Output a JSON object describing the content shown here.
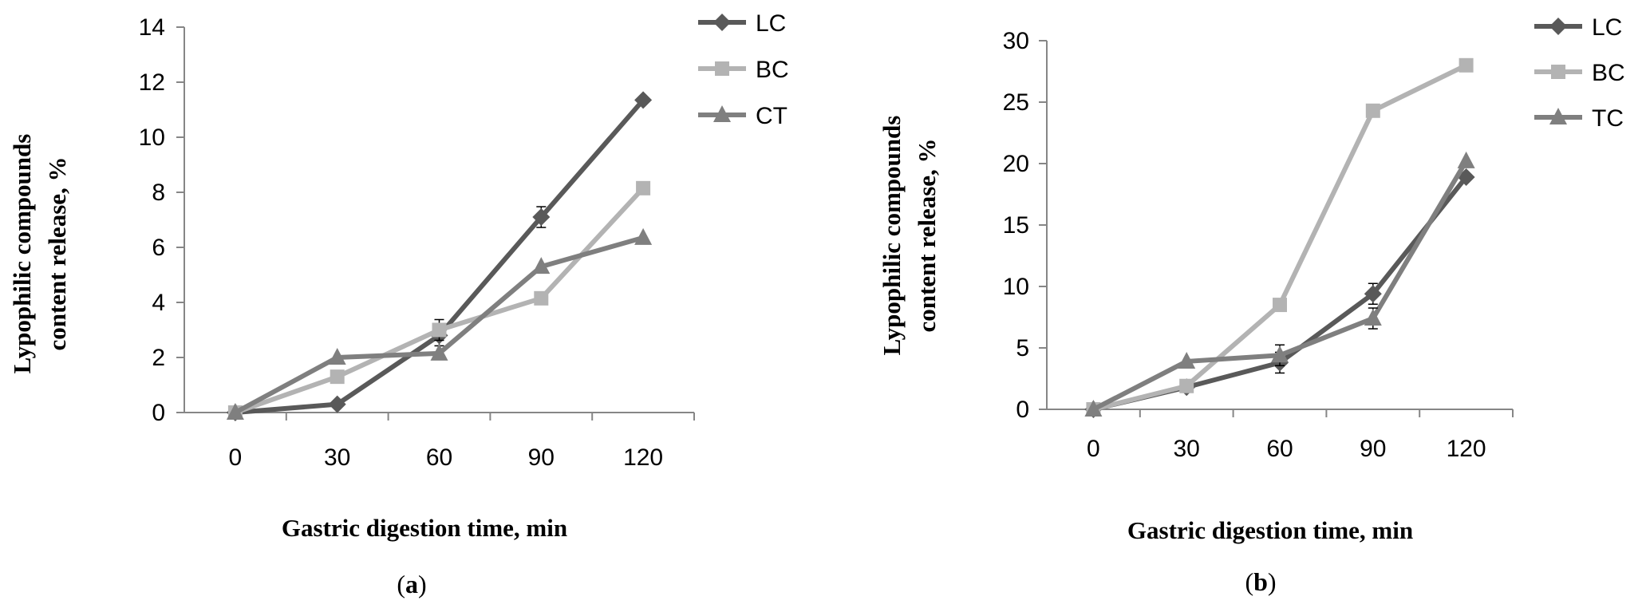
{
  "chart_data": [
    {
      "type": "line",
      "panel_label": "a",
      "x": [
        0,
        30,
        60,
        90,
        120
      ],
      "categories": [
        "0",
        "30",
        "60",
        "90",
        "120"
      ],
      "xlabel": "Gastric digestion time, min",
      "ylabel_line1": "Lypophilic compounds",
      "ylabel_line2": "content release, %",
      "ylim": [
        0,
        14
      ],
      "yticks": [
        0,
        2,
        4,
        6,
        8,
        10,
        12,
        14
      ],
      "legend_position": "top-right",
      "series": [
        {
          "name": "LC",
          "marker": "diamond",
          "color": "#595959",
          "values": [
            0.0,
            0.3,
            2.8,
            7.1,
            11.35
          ]
        },
        {
          "name": "BC",
          "marker": "square",
          "color": "#b3b3b3",
          "values": [
            0.0,
            1.3,
            3.0,
            4.15,
            8.15
          ]
        },
        {
          "name": "CT",
          "marker": "triangle",
          "color": "#7f7f7f",
          "values": [
            0.0,
            2.0,
            2.15,
            5.3,
            6.35
          ]
        }
      ]
    },
    {
      "type": "line",
      "panel_label": "b",
      "x": [
        0,
        30,
        60,
        90,
        120
      ],
      "categories": [
        "0",
        "30",
        "60",
        "90",
        "120"
      ],
      "xlabel": "Gastric digestion time, min",
      "ylabel_line1": "Lypophilic compounds",
      "ylabel_line2": "content release, %",
      "ylim": [
        0,
        30
      ],
      "yticks": [
        0,
        5,
        10,
        15,
        20,
        25,
        30
      ],
      "legend_position": "top-right",
      "series": [
        {
          "name": "LC",
          "marker": "diamond",
          "color": "#595959",
          "values": [
            0.0,
            1.8,
            3.8,
            9.4,
            18.9
          ]
        },
        {
          "name": "BC",
          "marker": "square",
          "color": "#b3b3b3",
          "values": [
            0.0,
            1.9,
            8.5,
            24.3,
            28.0
          ]
        },
        {
          "name": "TC",
          "marker": "triangle",
          "color": "#7f7f7f",
          "values": [
            0.0,
            3.9,
            4.4,
            7.4,
            20.2
          ]
        }
      ]
    }
  ]
}
